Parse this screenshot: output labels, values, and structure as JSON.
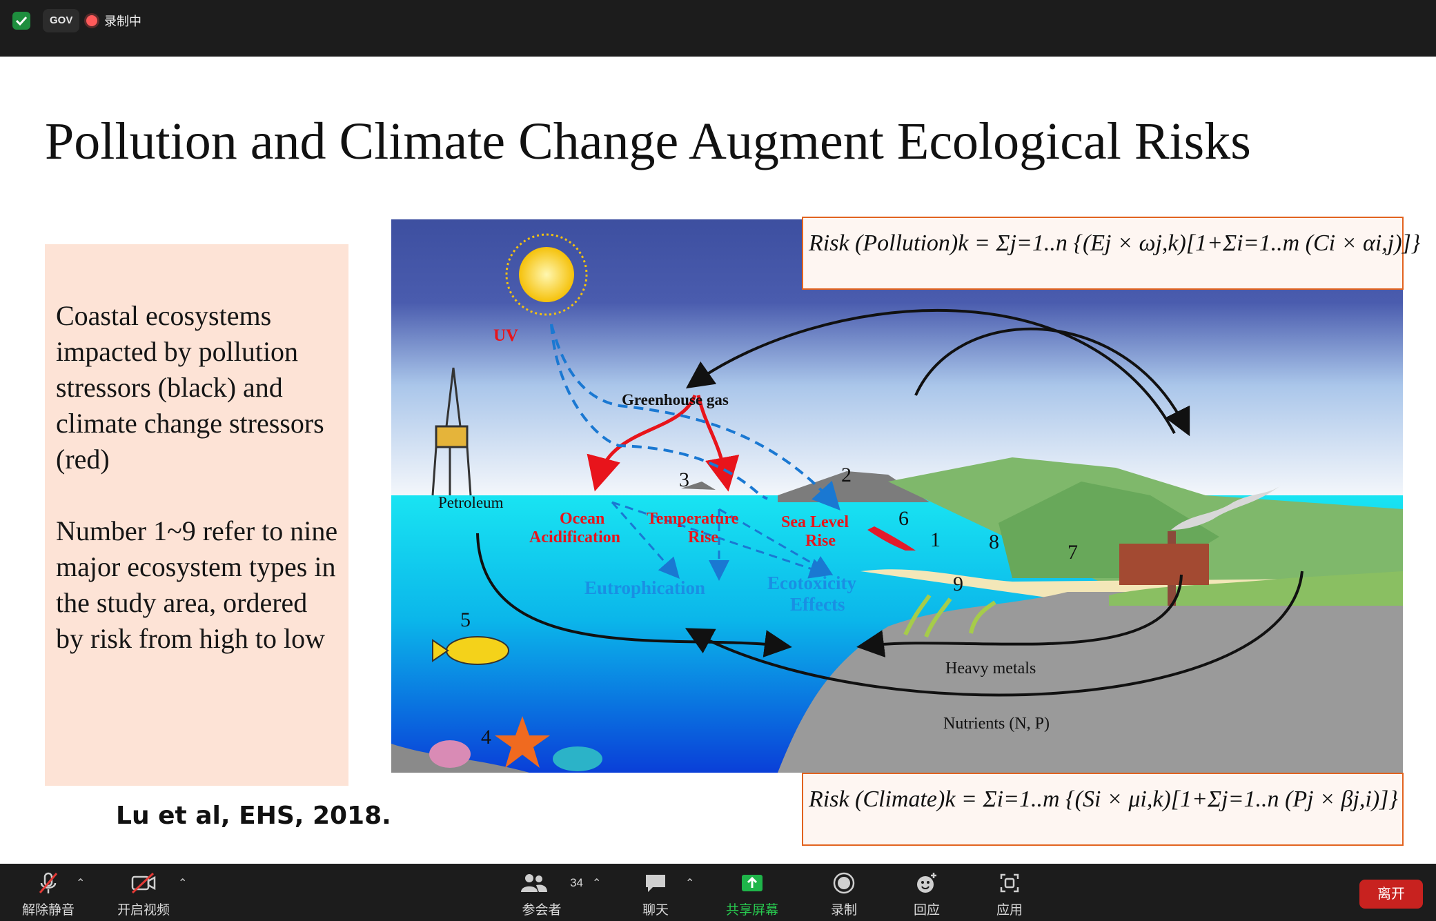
{
  "topbar": {
    "security_badge": "shield-check-icon",
    "gov_label": "GOV",
    "recording_label": "录制中"
  },
  "slide": {
    "title": "Pollution and Climate Change Augment Ecological Risks",
    "note_paragraph_1": "Coastal ecosystems impacted by pollution stressors (black) and climate change stressors (red)",
    "note_paragraph_2": "Number 1~9 refer to nine major ecosystem types in the study area, ordered by risk from high to low",
    "citation": "Lu et al, EHS, 2018.",
    "formula_pollution": "Risk (Pollution)k = Σj=1..n {(Ej × ωj,k)[1+Σi=1..m (Ci × αi,j)]}",
    "formula_climate": "Risk (Climate)k = Σi=1..m {(Si × μi,k)[1+Σj=1..n (Pj × βj,i)]}",
    "diagram": {
      "uv": "UV",
      "greenhouse": "Greenhouse gas",
      "petroleum": "Petroleum",
      "ocean_acid_1": "Ocean",
      "ocean_acid_2": "Acidification",
      "temp_1": "Temperature",
      "temp_2": "Rise",
      "sea_1": "Sea Level",
      "sea_2": "Rise",
      "eutro": "Eutrophication",
      "ecotox_1": "Ecotoxicity",
      "ecotox_2": "Effects",
      "heavy": "Heavy metals",
      "nutrients": "Nutrients (N, P)",
      "n1": "1",
      "n2": "2",
      "n3": "3",
      "n4": "4",
      "n5": "5",
      "n6": "6",
      "n7": "7",
      "n8": "8",
      "n9": "9"
    }
  },
  "toolbar": {
    "mute": "解除静音",
    "video": "开启视频",
    "participants": "参会者",
    "participants_count": "34",
    "chat": "聊天",
    "share": "共享屏幕",
    "record": "录制",
    "reactions": "回应",
    "apps": "应用",
    "leave": "离开"
  },
  "colors": {
    "share_green": "#1fb54a",
    "leave_red": "#c8221f",
    "note_bg": "#fde3d6",
    "formula_border": "#e2631f"
  }
}
